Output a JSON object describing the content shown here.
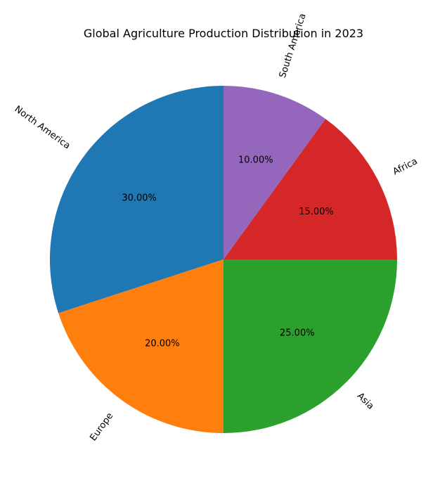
{
  "chart_data": {
    "type": "pie",
    "title": "Global Agriculture Production Distribution in 2023",
    "start_angle_deg": 90,
    "direction": "counterclockwise",
    "label_format": "0.00%",
    "slices": [
      {
        "label": "North America",
        "value": 30,
        "percent_label": "30.00%",
        "color": "#1f77b4"
      },
      {
        "label": "Europe",
        "value": 20,
        "percent_label": "20.00%",
        "color": "#ff7f0e"
      },
      {
        "label": "Asia",
        "value": 25,
        "percent_label": "25.00%",
        "color": "#2ca02c"
      },
      {
        "label": "Africa",
        "value": 15,
        "percent_label": "15.00%",
        "color": "#d62728"
      },
      {
        "label": "South America",
        "value": 10,
        "percent_label": "10.00%",
        "color": "#9467bd"
      }
    ]
  }
}
